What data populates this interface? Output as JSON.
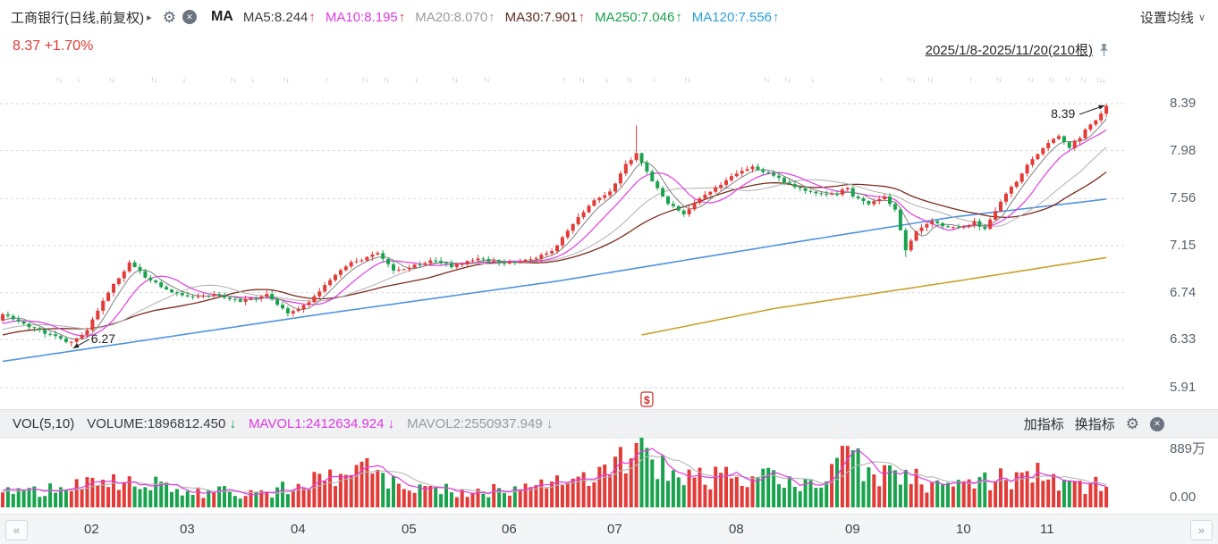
{
  "header": {
    "title": "工商银行(日线,前复权)",
    "ma_label": "MA",
    "ma_items": [
      {
        "text": "MA5:8.244",
        "color": "#3c3c3c",
        "arrow": "↑",
        "arrow_color": "#e03a36"
      },
      {
        "text": "MA10:8.195",
        "color": "#df3adf",
        "arrow": "↑",
        "arrow_color": "#e03a36"
      },
      {
        "text": "MA20:8.070",
        "color": "#9b9b9b",
        "arrow": "↑",
        "arrow_color": "#9b9b9b"
      },
      {
        "text": "MA30:7.901",
        "color": "#5d2a1e",
        "arrow": "↑",
        "arrow_color": "#e03a36"
      },
      {
        "text": "MA250:7.046",
        "color": "#18a249",
        "arrow": "↑",
        "arrow_color": "#18a249"
      },
      {
        "text": "MA120:7.556",
        "color": "#2b9fd8",
        "arrow": "↑",
        "arrow_color": "#2b9fd8"
      }
    ],
    "settings_label": "设置均线",
    "settings_caret": "∨"
  },
  "icons": {
    "title_caret": "▸",
    "gear": "⚙",
    "close": "✕"
  },
  "quote": {
    "text": "8.37 +1.70%"
  },
  "range_label": "2025/1/8-2025/11/20(210根)",
  "volume_header": {
    "vol_label": "VOL(5,10)",
    "items": [
      {
        "text": "VOLUME:1896812.450",
        "color": "#3c3c3c",
        "arrow": "↓",
        "arrow_color": "#1aa34e"
      },
      {
        "text": "MAVOL1:2412634.924",
        "color": "#df3adf",
        "arrow": "↓",
        "arrow_color": "#df3adf"
      },
      {
        "text": "MAVOL2:2550937.949",
        "color": "#9b9b9b",
        "arrow": "↓",
        "arrow_color": "#9b9b9b"
      }
    ],
    "add_indicator": "加指标",
    "switch_indicator": "换指标"
  },
  "axes": {
    "price_ticks": [
      "8.39",
      "7.98",
      "7.56",
      "7.15",
      "6.74",
      "6.33",
      "5.91"
    ],
    "volume_ticks": [
      "889万",
      "0.00"
    ]
  },
  "nav": {
    "left": "«",
    "right": "»"
  },
  "colors": {
    "up": "#e23b38",
    "down": "#1aa34e",
    "ma5": "#808080",
    "ma10": "#e13ce1",
    "ma20": "#b5b5b5",
    "ma30": "#7b2a1d",
    "ma120": "#4f94e0",
    "ma250": "#c9a12c",
    "grid": "#d9d9d9",
    "marker_gray": "#b7bcc3",
    "dollar_red": "#cc2a26",
    "accent_red": "#e03a36"
  },
  "chart_data": {
    "type": "candlestick",
    "symbol": "工商银行",
    "period": "日线",
    "adjust": "前复权",
    "bars_count": 210,
    "date_range": "2025/1/8-2025/11/20",
    "last_price": 8.37,
    "change_pct": "+1.70%",
    "price_axis": [
      8.39,
      7.98,
      7.56,
      7.15,
      6.74,
      6.33,
      5.91
    ],
    "ma_values": {
      "MA5": 8.244,
      "MA10": 8.195,
      "MA20": 8.07,
      "MA30": 7.901,
      "MA120": 7.556,
      "MA250": 7.046
    },
    "volume_unit": "万",
    "volume_axis_max": 889,
    "current_volume": "1896812.450",
    "mavol1": "2412634.924",
    "mavol2": "2550937.949",
    "low_annotation": {
      "text": "6.27",
      "index": 13,
      "price": 6.27
    },
    "high_annotation": {
      "text": "8.39",
      "index": 209,
      "price": 8.39
    },
    "dollar_marker_index": 122,
    "close_keyframes": [
      [
        0,
        6.55
      ],
      [
        4,
        6.46
      ],
      [
        8,
        6.39
      ],
      [
        13,
        6.3
      ],
      [
        16,
        6.42
      ],
      [
        20,
        6.74
      ],
      [
        24,
        7.0
      ],
      [
        27,
        6.88
      ],
      [
        31,
        6.76
      ],
      [
        35,
        6.7
      ],
      [
        40,
        6.73
      ],
      [
        45,
        6.67
      ],
      [
        50,
        6.72
      ],
      [
        54,
        6.55
      ],
      [
        58,
        6.66
      ],
      [
        62,
        6.85
      ],
      [
        66,
        7.0
      ],
      [
        71,
        7.08
      ],
      [
        74,
        6.93
      ],
      [
        77,
        6.96
      ],
      [
        81,
        7.02
      ],
      [
        85,
        6.97
      ],
      [
        90,
        7.03
      ],
      [
        95,
        7.0
      ],
      [
        100,
        7.03
      ],
      [
        104,
        7.1
      ],
      [
        108,
        7.34
      ],
      [
        112,
        7.55
      ],
      [
        115,
        7.62
      ],
      [
        118,
        7.86
      ],
      [
        120,
        7.95
      ],
      [
        123,
        7.72
      ],
      [
        126,
        7.52
      ],
      [
        129,
        7.43
      ],
      [
        132,
        7.56
      ],
      [
        135,
        7.66
      ],
      [
        139,
        7.78
      ],
      [
        142,
        7.83
      ],
      [
        146,
        7.76
      ],
      [
        150,
        7.66
      ],
      [
        154,
        7.6
      ],
      [
        158,
        7.6
      ],
      [
        160,
        7.66
      ],
      [
        161,
        7.58
      ],
      [
        164,
        7.52
      ],
      [
        167,
        7.58
      ],
      [
        169,
        7.46
      ],
      [
        171,
        7.12
      ],
      [
        173,
        7.28
      ],
      [
        176,
        7.36
      ],
      [
        179,
        7.3
      ],
      [
        182,
        7.31
      ],
      [
        184,
        7.36
      ],
      [
        186,
        7.29
      ],
      [
        188,
        7.46
      ],
      [
        190,
        7.6
      ],
      [
        192,
        7.71
      ],
      [
        194,
        7.85
      ],
      [
        196,
        7.96
      ],
      [
        198,
        8.05
      ],
      [
        200,
        8.11
      ],
      [
        202,
        8.01
      ],
      [
        204,
        8.1
      ],
      [
        206,
        8.21
      ],
      [
        208,
        8.3
      ],
      [
        209,
        8.37
      ]
    ],
    "volume_keyframes": [
      [
        0,
        200
      ],
      [
        13,
        280
      ],
      [
        24,
        430
      ],
      [
        35,
        240
      ],
      [
        50,
        210
      ],
      [
        56,
        310
      ],
      [
        71,
        520
      ],
      [
        77,
        260
      ],
      [
        95,
        230
      ],
      [
        108,
        360
      ],
      [
        116,
        520
      ],
      [
        120,
        889
      ],
      [
        123,
        600
      ],
      [
        130,
        390
      ],
      [
        139,
        430
      ],
      [
        146,
        390
      ],
      [
        155,
        310
      ],
      [
        160,
        850
      ],
      [
        165,
        390
      ],
      [
        171,
        520
      ],
      [
        176,
        310
      ],
      [
        182,
        270
      ],
      [
        188,
        390
      ],
      [
        193,
        480
      ],
      [
        198,
        430
      ],
      [
        203,
        340
      ],
      [
        209,
        310
      ]
    ],
    "volume_spikes": [
      [
        24,
        430
      ],
      [
        71,
        520
      ],
      [
        120,
        889
      ],
      [
        160,
        850
      ],
      [
        171,
        520
      ],
      [
        193,
        480
      ]
    ],
    "ma120_keyframes": [
      [
        0,
        6.14
      ],
      [
        60,
        6.55
      ],
      [
        105,
        6.84
      ],
      [
        150,
        7.18
      ],
      [
        180,
        7.4
      ],
      [
        209,
        7.556
      ]
    ],
    "ma250_keyframes": [
      [
        121,
        6.37
      ],
      [
        146,
        6.6
      ],
      [
        182,
        6.85
      ],
      [
        209,
        7.046
      ]
    ],
    "month_ticks": [
      {
        "label": "02",
        "index": 17
      },
      {
        "label": "03",
        "index": 35
      },
      {
        "label": "04",
        "index": 56
      },
      {
        "label": "05",
        "index": 77
      },
      {
        "label": "06",
        "index": 96
      },
      {
        "label": "07",
        "index": 116
      },
      {
        "label": "08",
        "index": 139
      },
      {
        "label": "09",
        "index": 161
      },
      {
        "label": "10",
        "index": 182
      },
      {
        "label": "11",
        "index": 198
      }
    ],
    "event_markers": [
      [
        11,
        "↑↓"
      ],
      [
        15,
        "↓"
      ],
      [
        21,
        "↑↓"
      ],
      [
        29,
        "↑↓"
      ],
      [
        35,
        "↓"
      ],
      [
        44,
        "↑↓"
      ],
      [
        48,
        "↓"
      ],
      [
        54,
        "↑↓"
      ],
      [
        62,
        "↑"
      ],
      [
        69,
        "↑↓"
      ],
      [
        73,
        "↑↓"
      ],
      [
        79,
        "↓"
      ],
      [
        86,
        "↑↓"
      ],
      [
        92,
        "↑↓"
      ],
      [
        107,
        "↑"
      ],
      [
        110,
        "↑↓"
      ],
      [
        115,
        "↓"
      ],
      [
        119,
        "↑↓"
      ],
      [
        124,
        "↓"
      ],
      [
        130,
        "↑↓"
      ],
      [
        145,
        "↑↓"
      ],
      [
        149,
        "↑↓"
      ],
      [
        154,
        "↓"
      ],
      [
        167,
        "↑"
      ],
      [
        172,
        "↑↑↓"
      ],
      [
        176,
        "↑↓"
      ],
      [
        184,
        "↑"
      ],
      [
        189,
        "↑↓"
      ],
      [
        195,
        "↑↓"
      ],
      [
        199,
        "↑↓"
      ],
      [
        202,
        "↑↑"
      ],
      [
        205,
        "↑↓"
      ],
      [
        208,
        "↑↓↓"
      ]
    ]
  }
}
